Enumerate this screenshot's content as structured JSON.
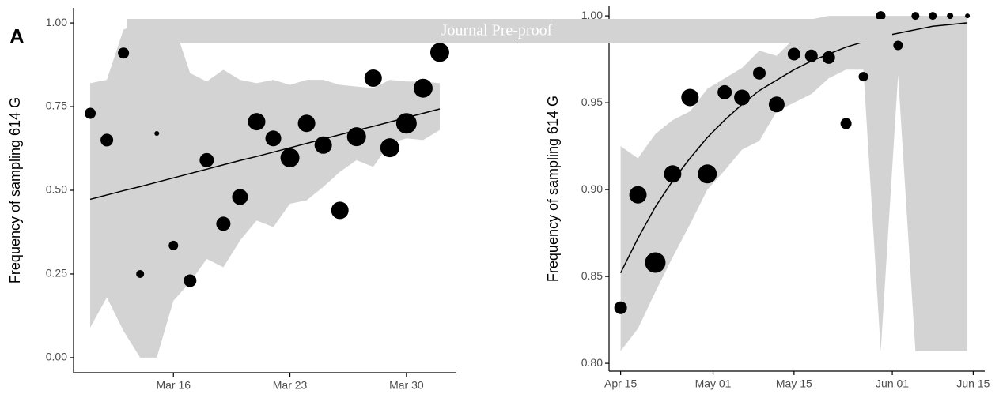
{
  "watermark": "Journal Pre-proof",
  "chart_data": [
    {
      "type": "scatter",
      "panel": "A",
      "ylabel": "Frequency of sampling 614 G",
      "x": [
        "Mar 11",
        "Mar 12",
        "Mar 13",
        "Mar 14",
        "Mar 15",
        "Mar 16",
        "Mar 17",
        "Mar 18",
        "Mar 19",
        "Mar 20",
        "Mar 21",
        "Mar 22",
        "Mar 23",
        "Mar 24",
        "Mar 25",
        "Mar 26",
        "Mar 27",
        "Mar 28",
        "Mar 29",
        "Mar 30",
        "Mar 31",
        "Apr 1"
      ],
      "values": [
        0.73,
        0.65,
        0.91,
        0.25,
        0.67,
        0.335,
        0.23,
        0.59,
        0.4,
        0.48,
        0.705,
        0.655,
        0.597,
        0.7,
        0.635,
        0.44,
        0.66,
        0.835,
        0.627,
        0.7,
        0.805,
        0.912
      ],
      "sizes": [
        7,
        8,
        7,
        5,
        3,
        6,
        8,
        9,
        9,
        10,
        11,
        10,
        12,
        11,
        11,
        11,
        12,
        11,
        12,
        13,
        12,
        12
      ],
      "fit": [
        0.473,
        0.486,
        0.499,
        0.511,
        0.524,
        0.537,
        0.55,
        0.563,
        0.576,
        0.589,
        0.601,
        0.614,
        0.627,
        0.64,
        0.653,
        0.666,
        0.679,
        0.691,
        0.704,
        0.717,
        0.73,
        0.743
      ],
      "band_upper": [
        0.82,
        0.83,
        0.98,
        1.0,
        1.0,
        1.0,
        0.85,
        0.825,
        0.86,
        0.83,
        0.82,
        0.83,
        0.815,
        0.83,
        0.83,
        0.815,
        0.81,
        0.805,
        0.83,
        0.825,
        0.825,
        0.82
      ],
      "band_lower": [
        0.09,
        0.18,
        0.08,
        0.0,
        0.0,
        0.17,
        0.225,
        0.295,
        0.27,
        0.35,
        0.41,
        0.39,
        0.46,
        0.47,
        0.51,
        0.555,
        0.59,
        0.57,
        0.64,
        0.655,
        0.65,
        0.68
      ],
      "color": "#000000",
      "band_color": "#d3d3d3",
      "xlim": [
        "Mar 10",
        "Apr 2"
      ],
      "xticks": [
        "Mar 16",
        "Mar 23",
        "Mar 30"
      ],
      "ylim": [
        -0.045,
        1.045
      ],
      "yticks": [
        {
          "value": 0,
          "label": "0.00"
        },
        {
          "value": 0.25,
          "label": "0.25"
        },
        {
          "value": 0.5,
          "label": "0.50"
        },
        {
          "value": 0.75,
          "label": "0.75"
        },
        {
          "value": 1,
          "label": "1.00"
        }
      ]
    },
    {
      "type": "scatter",
      "panel": "B",
      "ylabel": "Frequency of sampling 614 G",
      "x": [
        "Apr 15",
        "Apr 18",
        "Apr 21",
        "Apr 24",
        "Apr 27",
        "Apr 30",
        "May 3",
        "May 6",
        "May 9",
        "May 12",
        "May 15",
        "May 18",
        "May 21",
        "May 24",
        "May 27",
        "May 30",
        "Jun 2",
        "Jun 5",
        "Jun 8",
        "Jun 11",
        "Jun 14"
      ],
      "values": [
        0.832,
        0.897,
        0.858,
        0.909,
        0.953,
        0.909,
        0.956,
        0.953,
        0.967,
        0.949,
        0.978,
        0.977,
        0.976,
        0.938,
        0.965,
        1.0,
        0.983,
        1.0,
        1.0,
        1.0,
        1.0
      ],
      "sizes": [
        8,
        11,
        13,
        11,
        11,
        12,
        9,
        10,
        8,
        10,
        8,
        8,
        8,
        7,
        6,
        6,
        6,
        5,
        5,
        4,
        3
      ],
      "fit": [
        0.852,
        0.872,
        0.89,
        0.905,
        0.918,
        0.93,
        0.94,
        0.949,
        0.957,
        0.963,
        0.969,
        0.974,
        0.978,
        0.982,
        0.985,
        0.988,
        0.99,
        0.992,
        0.994,
        0.995,
        0.996
      ],
      "band_upper": [
        0.925,
        0.918,
        0.932,
        0.94,
        0.945,
        0.958,
        0.964,
        0.97,
        0.98,
        0.977,
        0.987,
        0.998,
        1.0,
        1.0,
        1.0,
        1.0,
        1.0,
        1.0,
        1.0,
        1.0,
        1.0
      ],
      "band_lower": [
        0.807,
        0.82,
        0.841,
        0.861,
        0.88,
        0.9,
        0.911,
        0.923,
        0.928,
        0.945,
        0.95,
        0.955,
        0.964,
        0.969,
        0.969,
        0.807,
        0.966,
        0.807,
        0.807,
        0.807,
        0.807
      ],
      "color": "#000000",
      "band_color": "#d3d3d3",
      "xlim": [
        "Apr 13",
        "Jun 17"
      ],
      "xticks": [
        "Apr 15",
        "May 01",
        "May 15",
        "Jun 01",
        "Jun 15"
      ],
      "ylim": [
        0.7955,
        1.0055
      ],
      "yticks": [
        {
          "value": 0.8,
          "label": "0.80"
        },
        {
          "value": 0.85,
          "label": "0.85"
        },
        {
          "value": 0.9,
          "label": "0.90"
        },
        {
          "value": 0.95,
          "label": "0.95"
        },
        {
          "value": 1,
          "label": "1.00"
        }
      ]
    }
  ]
}
